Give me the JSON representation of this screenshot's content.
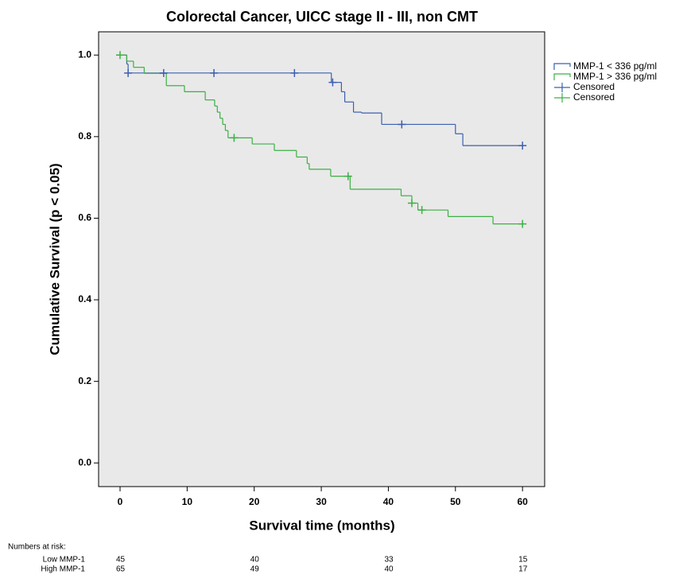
{
  "chart_data": {
    "type": "step",
    "title": "Colorectal Cancer, UICC stage II - III, non CMT",
    "x_label": "Survival time (months)",
    "y_label": "Cumulative Survival (p < 0.05)",
    "xlim": [
      -3.2,
      63.3
    ],
    "ylim": [
      -0.058,
      1.057
    ],
    "xticks": [
      0,
      10,
      20,
      30,
      40,
      50,
      60
    ],
    "yticks": [
      {
        "value": 0,
        "label": "0.0"
      },
      0.2,
      0.4,
      0.6,
      0.8,
      {
        "value": 1,
        "label": "1.0"
      }
    ],
    "background": "#e9e9e9",
    "series": [
      {
        "name": "MMP-1 < 336 pg/ml",
        "type": "step",
        "color": "#3b5fb0",
        "x": [
          0,
          1,
          1.2,
          31.5,
          33,
          33.5,
          34.8,
          36,
          39,
          50,
          51.1,
          60
        ],
        "values": [
          1.0,
          0.978,
          0.956,
          0.933,
          0.91,
          0.885,
          0.86,
          0.858,
          0.83,
          0.807,
          0.778,
          0.778
        ]
      },
      {
        "name": "MMP-1 > 336 pg/ml",
        "type": "step",
        "color": "#3cb043",
        "x": [
          0,
          1,
          2,
          3.6,
          6.9,
          9.6,
          12.7,
          14.1,
          14.5,
          14.9,
          15.3,
          15.7,
          16.1,
          19.7,
          23,
          26.3,
          27.9,
          28.2,
          31.4,
          34.3,
          41.9,
          43.5,
          44.4,
          48.9,
          55.6,
          60
        ],
        "values": [
          1.0,
          0.985,
          0.97,
          0.955,
          0.925,
          0.91,
          0.89,
          0.875,
          0.86,
          0.845,
          0.83,
          0.815,
          0.797,
          0.782,
          0.766,
          0.75,
          0.734,
          0.72,
          0.703,
          0.671,
          0.655,
          0.637,
          0.62,
          0.604,
          0.586,
          0.586
        ]
      },
      {
        "name": "Censored",
        "type": "censor",
        "color": "#3b5fb0",
        "x": [
          1.2,
          6.5,
          14,
          26,
          31.7,
          42,
          60
        ],
        "values": [
          0.956,
          0.956,
          0.956,
          0.956,
          0.933,
          0.83,
          0.778
        ]
      },
      {
        "name": "Censored",
        "type": "censor",
        "color": "#3cb043",
        "x": [
          0,
          17,
          34,
          43.5,
          45,
          60
        ],
        "values": [
          1.0,
          0.797,
          0.703,
          0.637,
          0.62,
          0.586
        ]
      }
    ],
    "risk_table": {
      "title": "Numbers at risk:",
      "x": [
        0,
        20,
        40,
        60
      ],
      "rows": [
        {
          "label": "Low MMP-1",
          "values": [
            45,
            40,
            33,
            15
          ]
        },
        {
          "label": "High MMP-1",
          "values": [
            65,
            49,
            40,
            17
          ]
        }
      ]
    }
  }
}
